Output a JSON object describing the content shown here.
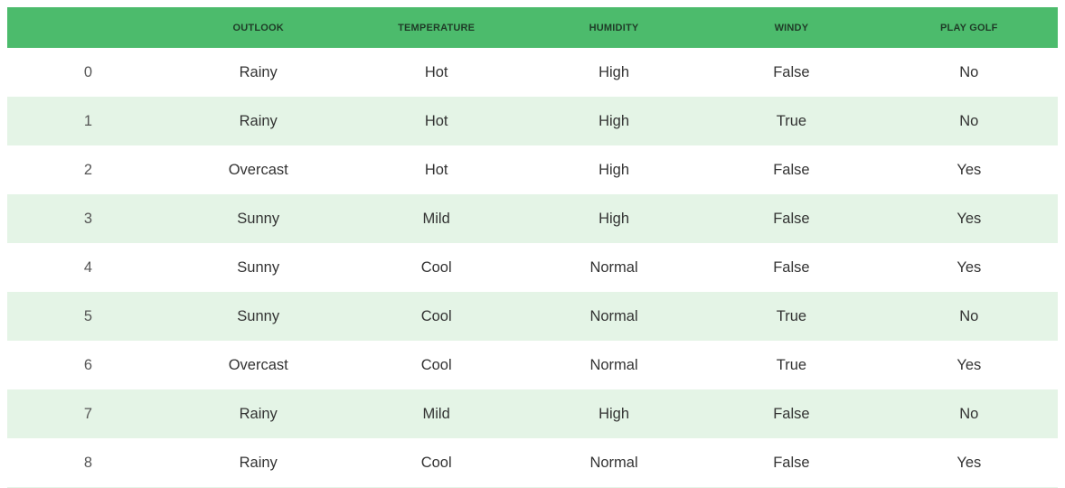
{
  "table": {
    "columns": [
      "",
      "OUTLOOK",
      "TEMPERATURE",
      "HUMIDITY",
      "WINDY",
      "PLAY GOLF"
    ],
    "rows": [
      [
        "0",
        "Rainy",
        "Hot",
        "High",
        "False",
        "No"
      ],
      [
        "1",
        "Rainy",
        "Hot",
        "High",
        "True",
        "No"
      ],
      [
        "2",
        "Overcast",
        "Hot",
        "High",
        "False",
        "Yes"
      ],
      [
        "3",
        "Sunny",
        "Mild",
        "High",
        "False",
        "Yes"
      ],
      [
        "4",
        "Sunny",
        "Cool",
        "Normal",
        "False",
        "Yes"
      ],
      [
        "5",
        "Sunny",
        "Cool",
        "Normal",
        "True",
        "No"
      ],
      [
        "6",
        "Overcast",
        "Cool",
        "Normal",
        "True",
        "Yes"
      ],
      [
        "7",
        "Rainy",
        "Mild",
        "High",
        "False",
        "No"
      ],
      [
        "8",
        "Rainy",
        "Cool",
        "Normal",
        "False",
        "Yes"
      ]
    ]
  },
  "colors": {
    "header_bg": "#4cbb6c",
    "stripe_bg": "#e4f4e6",
    "text": "#333333"
  }
}
